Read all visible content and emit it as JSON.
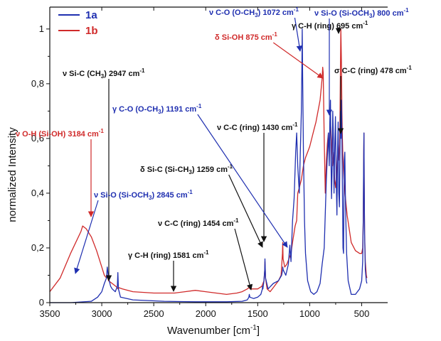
{
  "chart_data": {
    "type": "line",
    "xlabel_main": "Wavenumber [cm",
    "xlabel_sup": "-1",
    "xlabel_tail": "]",
    "ylabel": "normalized Intensity",
    "x_ticks": [
      "3500",
      "3000",
      "2500",
      "2000",
      "1500",
      "1000",
      "500"
    ],
    "y_ticks": [
      "0",
      "0,2",
      "0,4",
      "0,6",
      "0,8",
      "1"
    ],
    "xlim": [
      3500,
      250
    ],
    "ylim": [
      0,
      1.08
    ],
    "legend": [
      {
        "name": "1a",
        "color": "#1f2fb0"
      },
      {
        "name": "1b",
        "color": "#d02a2a"
      }
    ],
    "series": [
      {
        "name": "1a",
        "color": "#1f2fb0",
        "x": [
          3500,
          3300,
          3100,
          3040,
          3000,
          2975,
          2955,
          2947,
          2935,
          2915,
          2900,
          2870,
          2850,
          2845,
          2840,
          2820,
          2700,
          2400,
          2100,
          1800,
          1650,
          1600,
          1585,
          1581,
          1575,
          1540,
          1500,
          1470,
          1455,
          1454,
          1450,
          1440,
          1432,
          1430,
          1425,
          1400,
          1350,
          1300,
          1270,
          1260,
          1259,
          1255,
          1230,
          1205,
          1191,
          1180,
          1165,
          1150,
          1135,
          1125,
          1115,
          1100,
          1090,
          1080,
          1075,
          1072,
          1068,
          1060,
          1050,
          1040,
          1020,
          990,
          960,
          930,
          900,
          880,
          860,
          840,
          820,
          812,
          806,
          800,
          796,
          790,
          784,
          778,
          772,
          766,
          760,
          752,
          745,
          738,
          732,
          726,
          720,
          714,
          708,
          704,
          700,
          695,
          690,
          686,
          680,
          674,
          668,
          662,
          655,
          645,
          630,
          600,
          560,
          520,
          500,
          490,
          485,
          480,
          478,
          476,
          472,
          465,
          455,
          450
        ],
        "y": [
          0.0,
          0.0,
          0.005,
          0.02,
          0.04,
          0.07,
          0.09,
          0.13,
          0.09,
          0.06,
          0.05,
          0.04,
          0.06,
          0.11,
          0.05,
          0.02,
          0.01,
          0.005,
          0.003,
          0.003,
          0.005,
          0.01,
          0.02,
          0.03,
          0.02,
          0.015,
          0.02,
          0.03,
          0.05,
          0.06,
          0.05,
          0.08,
          0.12,
          0.16,
          0.09,
          0.05,
          0.07,
          0.08,
          0.1,
          0.12,
          0.13,
          0.12,
          0.1,
          0.14,
          0.21,
          0.15,
          0.3,
          0.38,
          0.55,
          0.62,
          0.5,
          0.4,
          0.55,
          0.7,
          0.85,
          1.0,
          0.85,
          0.55,
          0.3,
          0.18,
          0.08,
          0.04,
          0.03,
          0.04,
          0.07,
          0.14,
          0.2,
          0.45,
          0.62,
          0.5,
          0.66,
          0.74,
          0.55,
          0.38,
          0.5,
          0.7,
          0.6,
          0.4,
          0.55,
          0.68,
          0.45,
          0.32,
          0.55,
          0.66,
          0.4,
          0.35,
          0.58,
          0.7,
          0.6,
          0.74,
          0.6,
          0.45,
          0.2,
          0.18,
          0.52,
          0.55,
          0.35,
          0.18,
          0.08,
          0.03,
          0.03,
          0.05,
          0.08,
          0.15,
          0.3,
          0.55,
          0.62,
          0.45,
          0.25,
          0.12,
          0.08,
          0.07
        ]
      },
      {
        "name": "1b",
        "color": "#d02a2a",
        "x": [
          3500,
          3400,
          3300,
          3200,
          3184,
          3150,
          3100,
          3050,
          3000,
          2975,
          2955,
          2947,
          2935,
          2900,
          2850,
          2845,
          2840,
          2800,
          2700,
          2500,
          2300,
          2200,
          2100,
          2000,
          1900,
          1800,
          1700,
          1650,
          1600,
          1585,
          1581,
          1575,
          1550,
          1500,
          1460,
          1440,
          1432,
          1430,
          1425,
          1410,
          1380,
          1340,
          1300,
          1275,
          1262,
          1259,
          1256,
          1240,
          1220,
          1200,
          1180,
          1165,
          1140,
          1125,
          1115,
          1100,
          1080,
          1060,
          1040,
          1020,
          1000,
          980,
          960,
          940,
          920,
          900,
          880,
          875,
          870,
          860,
          850,
          840,
          830,
          820,
          812,
          806,
          800,
          790,
          780,
          770,
          760,
          750,
          740,
          730,
          720,
          712,
          708,
          704,
          700,
          695,
          690,
          685,
          680,
          670,
          660,
          650,
          640,
          620,
          600,
          560,
          520,
          500,
          490,
          485,
          480,
          478,
          476,
          472,
          465,
          455,
          450
        ],
        "y": [
          0.04,
          0.09,
          0.18,
          0.26,
          0.28,
          0.27,
          0.24,
          0.19,
          0.13,
          0.1,
          0.09,
          0.1,
          0.08,
          0.07,
          0.055,
          0.05,
          0.055,
          0.05,
          0.04,
          0.035,
          0.035,
          0.04,
          0.045,
          0.04,
          0.035,
          0.03,
          0.035,
          0.04,
          0.05,
          0.055,
          0.06,
          0.05,
          0.05,
          0.05,
          0.06,
          0.08,
          0.12,
          0.15,
          0.09,
          0.05,
          0.04,
          0.06,
          0.08,
          0.1,
          0.18,
          0.22,
          0.16,
          0.13,
          0.14,
          0.16,
          0.18,
          0.22,
          0.28,
          0.3,
          0.4,
          0.42,
          0.45,
          0.5,
          0.53,
          0.55,
          0.57,
          0.6,
          0.63,
          0.66,
          0.7,
          0.74,
          0.82,
          0.86,
          0.84,
          0.6,
          0.4,
          0.52,
          0.58,
          0.62,
          0.55,
          0.62,
          0.66,
          0.58,
          0.5,
          0.55,
          0.45,
          0.42,
          0.48,
          0.55,
          0.52,
          0.58,
          0.7,
          0.85,
          1.0,
          0.88,
          0.7,
          0.6,
          0.52,
          0.45,
          0.4,
          0.36,
          0.32,
          0.27,
          0.22,
          0.19,
          0.18,
          0.18,
          0.2,
          0.3,
          0.55,
          0.62,
          0.45,
          0.25,
          0.15,
          0.1,
          0.09
        ]
      }
    ],
    "annotations": [
      {
        "text_pre": "ν Si-C (CH",
        "sub": "3",
        "text_post": ") 2947 cm",
        "sup": "-1",
        "color": "#111111",
        "tx": 2947,
        "ty": 0.13
      },
      {
        "text_pre": "ν O-H (Si-OH) 3184 cm",
        "sub": "",
        "text_post": "",
        "sup": "-1",
        "color": "#d02a2a",
        "tx": 3184,
        "ty": 0.28
      },
      {
        "text_pre": "ν Si-O (Si-OCH",
        "sub": "3",
        "text_post": ") 2845 cm",
        "sup": "-1",
        "color": "#1f2fb0",
        "tx": 2845,
        "ty": 0.11
      },
      {
        "text_pre": "γ C-H (ring) 1581 cm",
        "sub": "",
        "text_post": "",
        "sup": "-1",
        "color": "#111111",
        "tx": 1581,
        "ty": 0.06
      },
      {
        "text_pre": "ν C-C (ring) 1454 cm",
        "sub": "",
        "text_post": "",
        "sup": "-1",
        "color": "#111111",
        "tx": 1454,
        "ty": 0.06
      },
      {
        "text_pre": "δ Si-C (Si-CH",
        "sub": "3",
        "text_post": ") 1259 cm",
        "sup": "-1",
        "color": "#111111",
        "tx": 1259,
        "ty": 0.2
      },
      {
        "text_pre": "ν C-C (ring) 1430 cm",
        "sub": "",
        "text_post": "",
        "sup": "-1",
        "color": "#111111",
        "tx": 1430,
        "ty": 0.16
      },
      {
        "text_pre": "γ C-O (O-CH",
        "sub": "3",
        "text_post": ") 1191 cm",
        "sup": "-1",
        "color": "#1f2fb0",
        "tx": 1191,
        "ty": 0.21
      },
      {
        "text_pre": "ν C-O (O-CH",
        "sub": "3",
        "text_post": ") 1072 cm",
        "sup": "-1",
        "color": "#1f2fb0",
        "tx": 1072,
        "ty": 0.98
      },
      {
        "text_pre": "δ Si-OH 875 cm",
        "sub": "",
        "text_post": "",
        "sup": "-1",
        "color": "#d02a2a",
        "tx": 875,
        "ty": 0.86
      },
      {
        "text_pre": "γ C-H (ring) 695 cm",
        "sub": "",
        "text_post": "",
        "sup": "-1",
        "color": "#111111",
        "tx": 695,
        "ty": 0.98
      },
      {
        "text_pre": "ν Si-O (Si-OCH",
        "sub": "3",
        "text_post": ") 800 cm",
        "sup": "-1",
        "color": "#1f2fb0",
        "tx": 800,
        "ty": 0.74
      },
      {
        "text_pre": "σ C-C (ring) 478 cm",
        "sub": "",
        "text_post": "",
        "sup": "-1",
        "color": "#111111",
        "tx": 478,
        "ty": 0.62
      }
    ]
  }
}
